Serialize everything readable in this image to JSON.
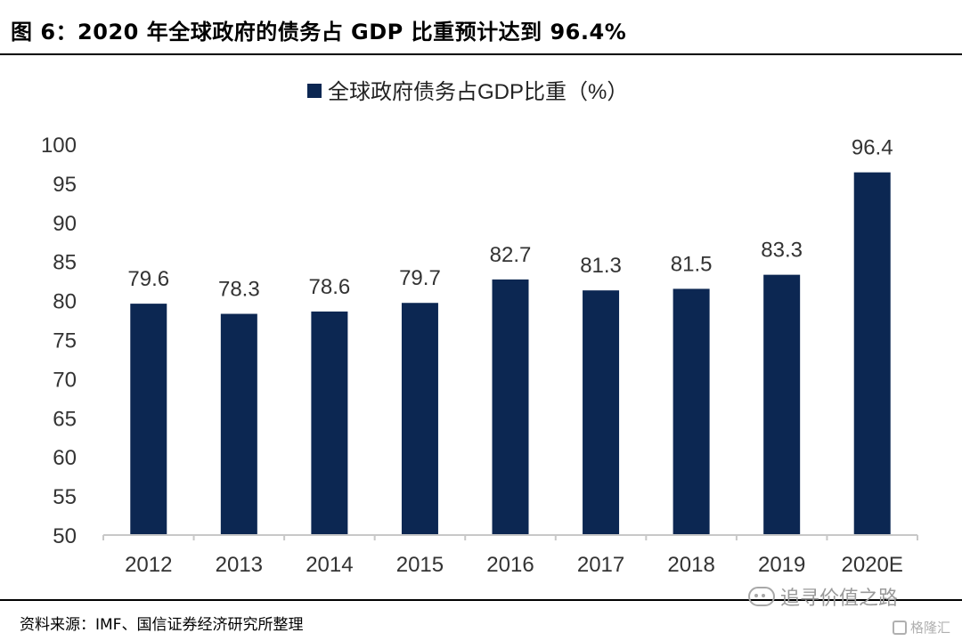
{
  "header": {
    "title": "图 6：2020 年全球政府的债务占 GDP 比重预计达到 96.4%"
  },
  "footer": {
    "source": "资料来源：IMF、国信证券经济研究所整理"
  },
  "watermark": {
    "text": "追寻价值之路",
    "brand": "格隆汇"
  },
  "colors": {
    "bar": "#0c2752",
    "axis": "#c8c8c8"
  },
  "chart_data": {
    "type": "bar",
    "categories": [
      "2012",
      "2013",
      "2014",
      "2015",
      "2016",
      "2017",
      "2018",
      "2019",
      "2020E"
    ],
    "series": [
      {
        "name": "全球政府债务占GDP比重（%）",
        "values": [
          79.6,
          78.3,
          78.6,
          79.7,
          82.7,
          81.3,
          81.5,
          83.3,
          96.4
        ]
      }
    ],
    "data_labels": [
      "79.6",
      "78.3",
      "78.6",
      "79.7",
      "82.7",
      "81.3",
      "81.5",
      "83.3",
      "96.4"
    ],
    "ylim": [
      50,
      100
    ],
    "yticks": [
      50,
      55,
      60,
      65,
      70,
      75,
      80,
      85,
      90,
      95,
      100
    ],
    "legend_position": "top-center",
    "grid": false
  }
}
